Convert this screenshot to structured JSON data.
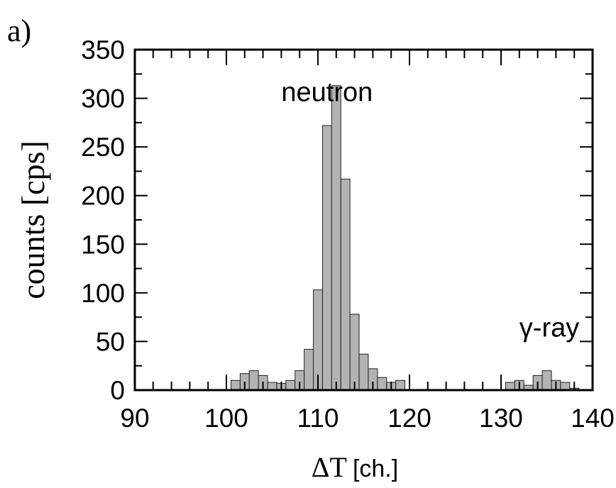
{
  "panel_label": "a)",
  "chart_data": {
    "type": "bar",
    "title": "",
    "xlabel_symbol": "ΔT",
    "xlabel_unit": "[ch.]",
    "ylabel": "counts [cps]",
    "xlim": [
      90,
      140
    ],
    "ylim": [
      0,
      350
    ],
    "x_ticks": [
      90,
      100,
      110,
      120,
      130,
      140
    ],
    "y_ticks": [
      0,
      50,
      100,
      150,
      200,
      250,
      300,
      350
    ],
    "x_minor_step": 2,
    "y_minor_step": 25,
    "bin_width": 1,
    "annotations": [
      {
        "text": "neutron",
        "x": 106,
        "y": 297
      },
      {
        "text": "γ-ray",
        "x": 132,
        "y": 55
      }
    ],
    "bins": [
      {
        "x": 101,
        "y": 10
      },
      {
        "x": 102,
        "y": 17
      },
      {
        "x": 103,
        "y": 20
      },
      {
        "x": 104,
        "y": 15
      },
      {
        "x": 105,
        "y": 8
      },
      {
        "x": 106,
        "y": 7
      },
      {
        "x": 107,
        "y": 10
      },
      {
        "x": 108,
        "y": 20
      },
      {
        "x": 109,
        "y": 42
      },
      {
        "x": 110,
        "y": 103
      },
      {
        "x": 111,
        "y": 272
      },
      {
        "x": 112,
        "y": 313
      },
      {
        "x": 113,
        "y": 217
      },
      {
        "x": 114,
        "y": 78
      },
      {
        "x": 115,
        "y": 37
      },
      {
        "x": 116,
        "y": 22
      },
      {
        "x": 117,
        "y": 13
      },
      {
        "x": 118,
        "y": 8
      },
      {
        "x": 119,
        "y": 10
      },
      {
        "x": 131,
        "y": 8
      },
      {
        "x": 132,
        "y": 10
      },
      {
        "x": 133,
        "y": 5
      },
      {
        "x": 134,
        "y": 15
      },
      {
        "x": 135,
        "y": 20
      },
      {
        "x": 136,
        "y": 10
      },
      {
        "x": 137,
        "y": 8
      },
      {
        "x": 138,
        "y": 2
      }
    ]
  }
}
